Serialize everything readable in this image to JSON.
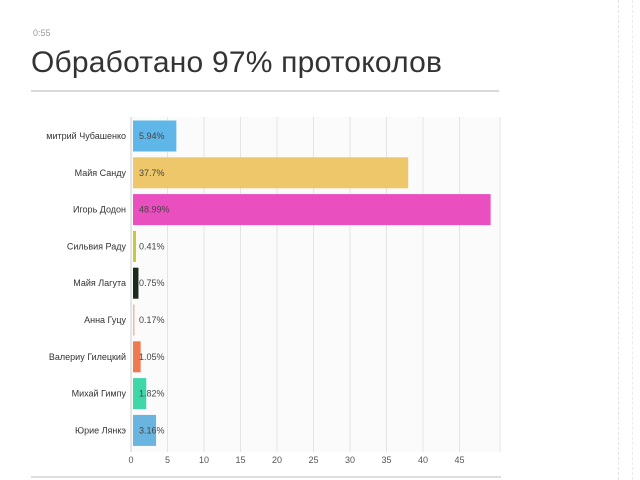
{
  "header": {
    "timestamp": "0:55",
    "title": "Обработано 97% протоколов"
  },
  "chart_data": {
    "type": "bar",
    "orientation": "horizontal",
    "title": "Обработано 97% протоколов",
    "xlabel": "",
    "ylabel": "",
    "xlim": [
      0,
      50
    ],
    "x_ticks": [
      0,
      5,
      10,
      15,
      20,
      25,
      30,
      35,
      40,
      45
    ],
    "grid": true,
    "categories": [
      "митрий Чубашенко",
      "Майя Санду",
      "Игорь Додон",
      "Сильвия Раду",
      "Майя Лагута",
      "Анна Гуцу",
      "Валериу Гилецкий",
      "Михай Гимпу",
      "Юрие Лянкэ"
    ],
    "values": [
      5.94,
      37.7,
      48.99,
      0.41,
      0.75,
      0.17,
      1.05,
      1.82,
      3.16
    ],
    "value_labels": [
      "5.94%",
      "37.7%",
      "48.99%",
      "0.41%",
      "0.75%",
      "0.17%",
      "1.05%",
      "1.82%",
      "3.16%"
    ],
    "colors": [
      "#5fb6e8",
      "#edc76a",
      "#ea4fc0",
      "#c8c83a",
      "#1e2a1e",
      "#f0b8a8",
      "#f07a50",
      "#3fd6a8",
      "#6ab4e0"
    ]
  }
}
